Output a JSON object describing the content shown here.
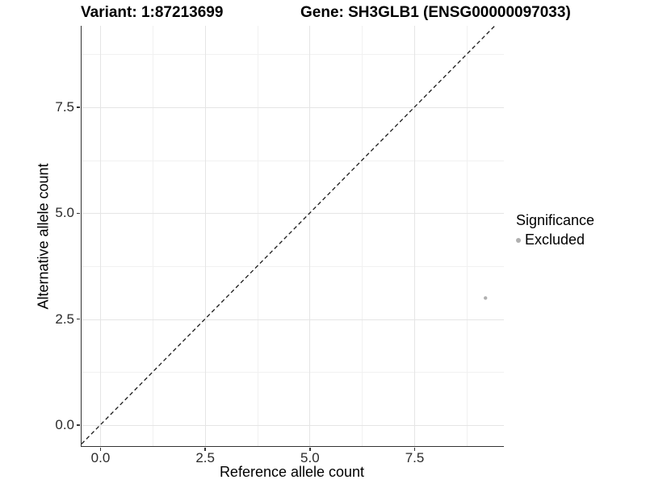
{
  "titles": {
    "variant": "Variant: 1:87213699",
    "gene": "Gene: SH3GLB1 (ENSG00000097033)"
  },
  "chart_data": {
    "type": "scatter",
    "title_left": "Variant: 1:87213699",
    "title_right": "Gene: SH3GLB1 (ENSG00000097033)",
    "xlabel": "Reference allele count",
    "ylabel": "Alternative allele count",
    "x_ticks": [
      0.0,
      2.5,
      5.0,
      7.5
    ],
    "y_ticks": [
      0.0,
      2.5,
      5.0,
      7.5
    ],
    "x_tick_labels": [
      "0.0",
      "2.5",
      "5.0",
      "7.5"
    ],
    "y_tick_labels": [
      "0.0",
      "2.5",
      "5.0",
      "7.5"
    ],
    "x_minor_ticks": [
      1.25,
      3.75,
      6.25,
      8.75
    ],
    "y_minor_ticks": [
      1.25,
      3.75,
      6.25,
      8.75
    ],
    "xlim": [
      -0.44,
      9.64
    ],
    "ylim": [
      -0.49,
      9.42
    ],
    "grid": true,
    "points": [
      {
        "x": 9.2,
        "y": 3.0,
        "series": "Excluded"
      }
    ],
    "reference_line": {
      "style": "dashed",
      "slope": 1,
      "intercept": 0
    },
    "legend": {
      "title": "Significance",
      "position": "right",
      "entries": [
        {
          "label": "Excluded",
          "color": "#b0b0b0"
        }
      ]
    }
  },
  "colors": {
    "point": "#b0b0b0",
    "grid_major": "#e5e5e5",
    "grid_minor": "#f1f1f1",
    "axis_line": "#333333",
    "dashed_line": "#1a1a1a",
    "text": "#000000"
  }
}
